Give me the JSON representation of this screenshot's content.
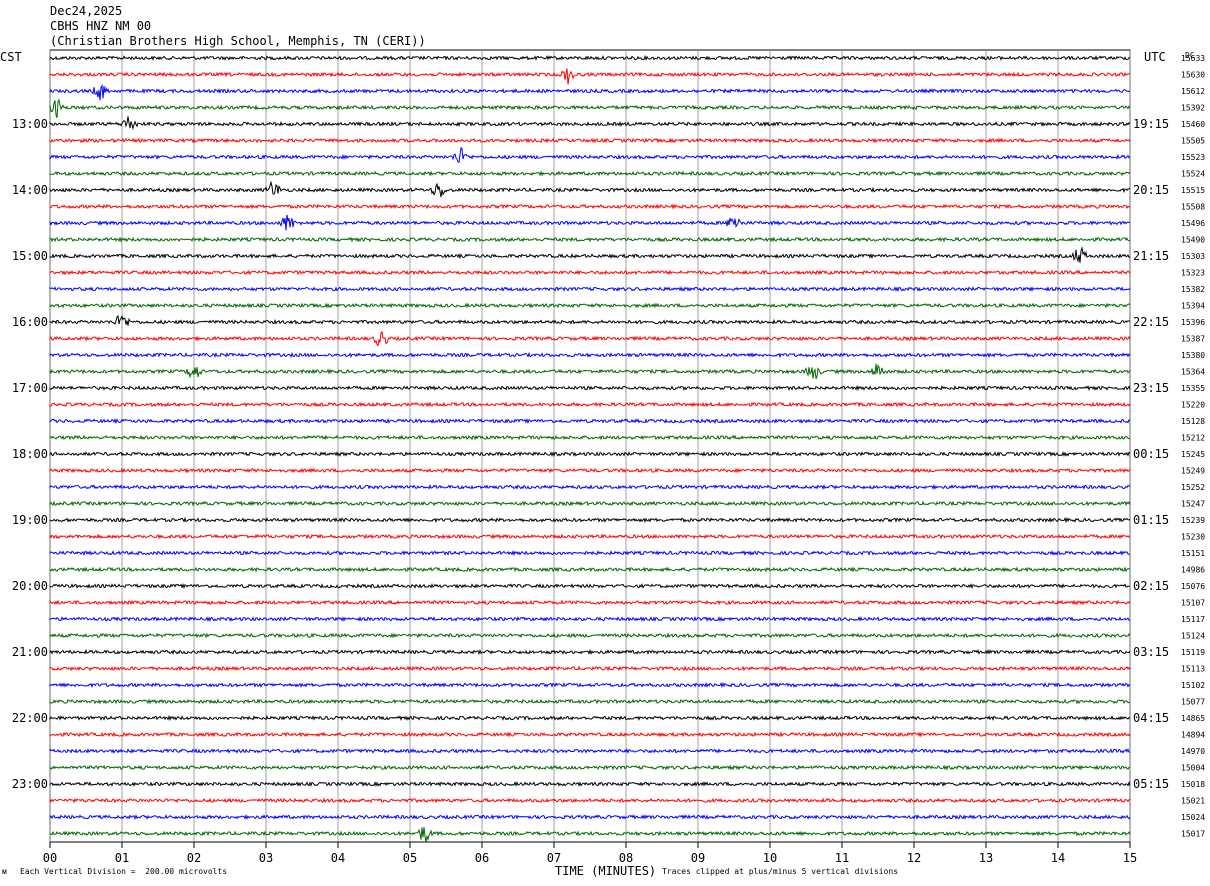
{
  "header": {
    "date": "Dec24,2025",
    "station": "CBHS HNZ NM 00",
    "location": "(Christian Brothers High School, Memphis, TN (CERI))"
  },
  "left_timezone": "CST",
  "right_timezone": "UTC",
  "dc_label": "DC",
  "footer": {
    "scale_note": "Each Vertical Division =  200.00 microvolts",
    "clip_note": "Traces clipped at plus/minus 5 vertical divisions",
    "corner_mark": "ᴍ"
  },
  "chart_data": {
    "type": "line",
    "xlabel": "TIME (MINUTES)",
    "xlim": [
      0,
      15
    ],
    "x_ticks": [
      "00",
      "01",
      "02",
      "03",
      "04",
      "05",
      "06",
      "07",
      "08",
      "09",
      "10",
      "11",
      "12",
      "13",
      "14",
      "15"
    ],
    "trace_colors": [
      "#000000",
      "#ff0000",
      "#0000ff",
      "#006600"
    ],
    "left_hour_labels": [
      "13:00",
      "14:00",
      "15:00",
      "16:00",
      "17:00",
      "18:00",
      "19:00",
      "20:00",
      "21:00",
      "22:00",
      "23:00"
    ],
    "right_hour_labels": [
      "19:15",
      "20:15",
      "21:15",
      "22:15",
      "23:15",
      "00:15",
      "01:15",
      "02:15",
      "03:15",
      "04:15",
      "05:15"
    ],
    "dc_offsets": [
      15633,
      15630,
      15612,
      15392,
      15460,
      15505,
      15523,
      15524,
      15515,
      15508,
      15496,
      15490,
      15303,
      15323,
      15382,
      15394,
      15396,
      15387,
      15380,
      15364,
      15355,
      15220,
      15128,
      15212,
      15245,
      15249,
      15252,
      15247,
      15239,
      15230,
      15151,
      14986,
      15076,
      15107,
      15117,
      15124,
      15119,
      15113,
      15102,
      15077,
      14865,
      14894,
      14970,
      15004,
      15018,
      15021,
      15024,
      15017
    ],
    "events": [
      {
        "trace": 1,
        "minute": 7.2
      },
      {
        "trace": 2,
        "minute": 0.7
      },
      {
        "trace": 3,
        "minute": 0.1
      },
      {
        "trace": 4,
        "minute": 1.1
      },
      {
        "trace": 6,
        "minute": 5.7
      },
      {
        "trace": 8,
        "minute": 3.1
      },
      {
        "trace": 8,
        "minute": 5.4
      },
      {
        "trace": 10,
        "minute": 3.3
      },
      {
        "trace": 10,
        "minute": 9.5
      },
      {
        "trace": 12,
        "minute": 14.3
      },
      {
        "trace": 16,
        "minute": 1.0
      },
      {
        "trace": 17,
        "minute": 4.6
      },
      {
        "trace": 19,
        "minute": 2.0
      },
      {
        "trace": 19,
        "minute": 10.6
      },
      {
        "trace": 19,
        "minute": 11.5
      },
      {
        "trace": 47,
        "minute": 5.2
      }
    ]
  }
}
